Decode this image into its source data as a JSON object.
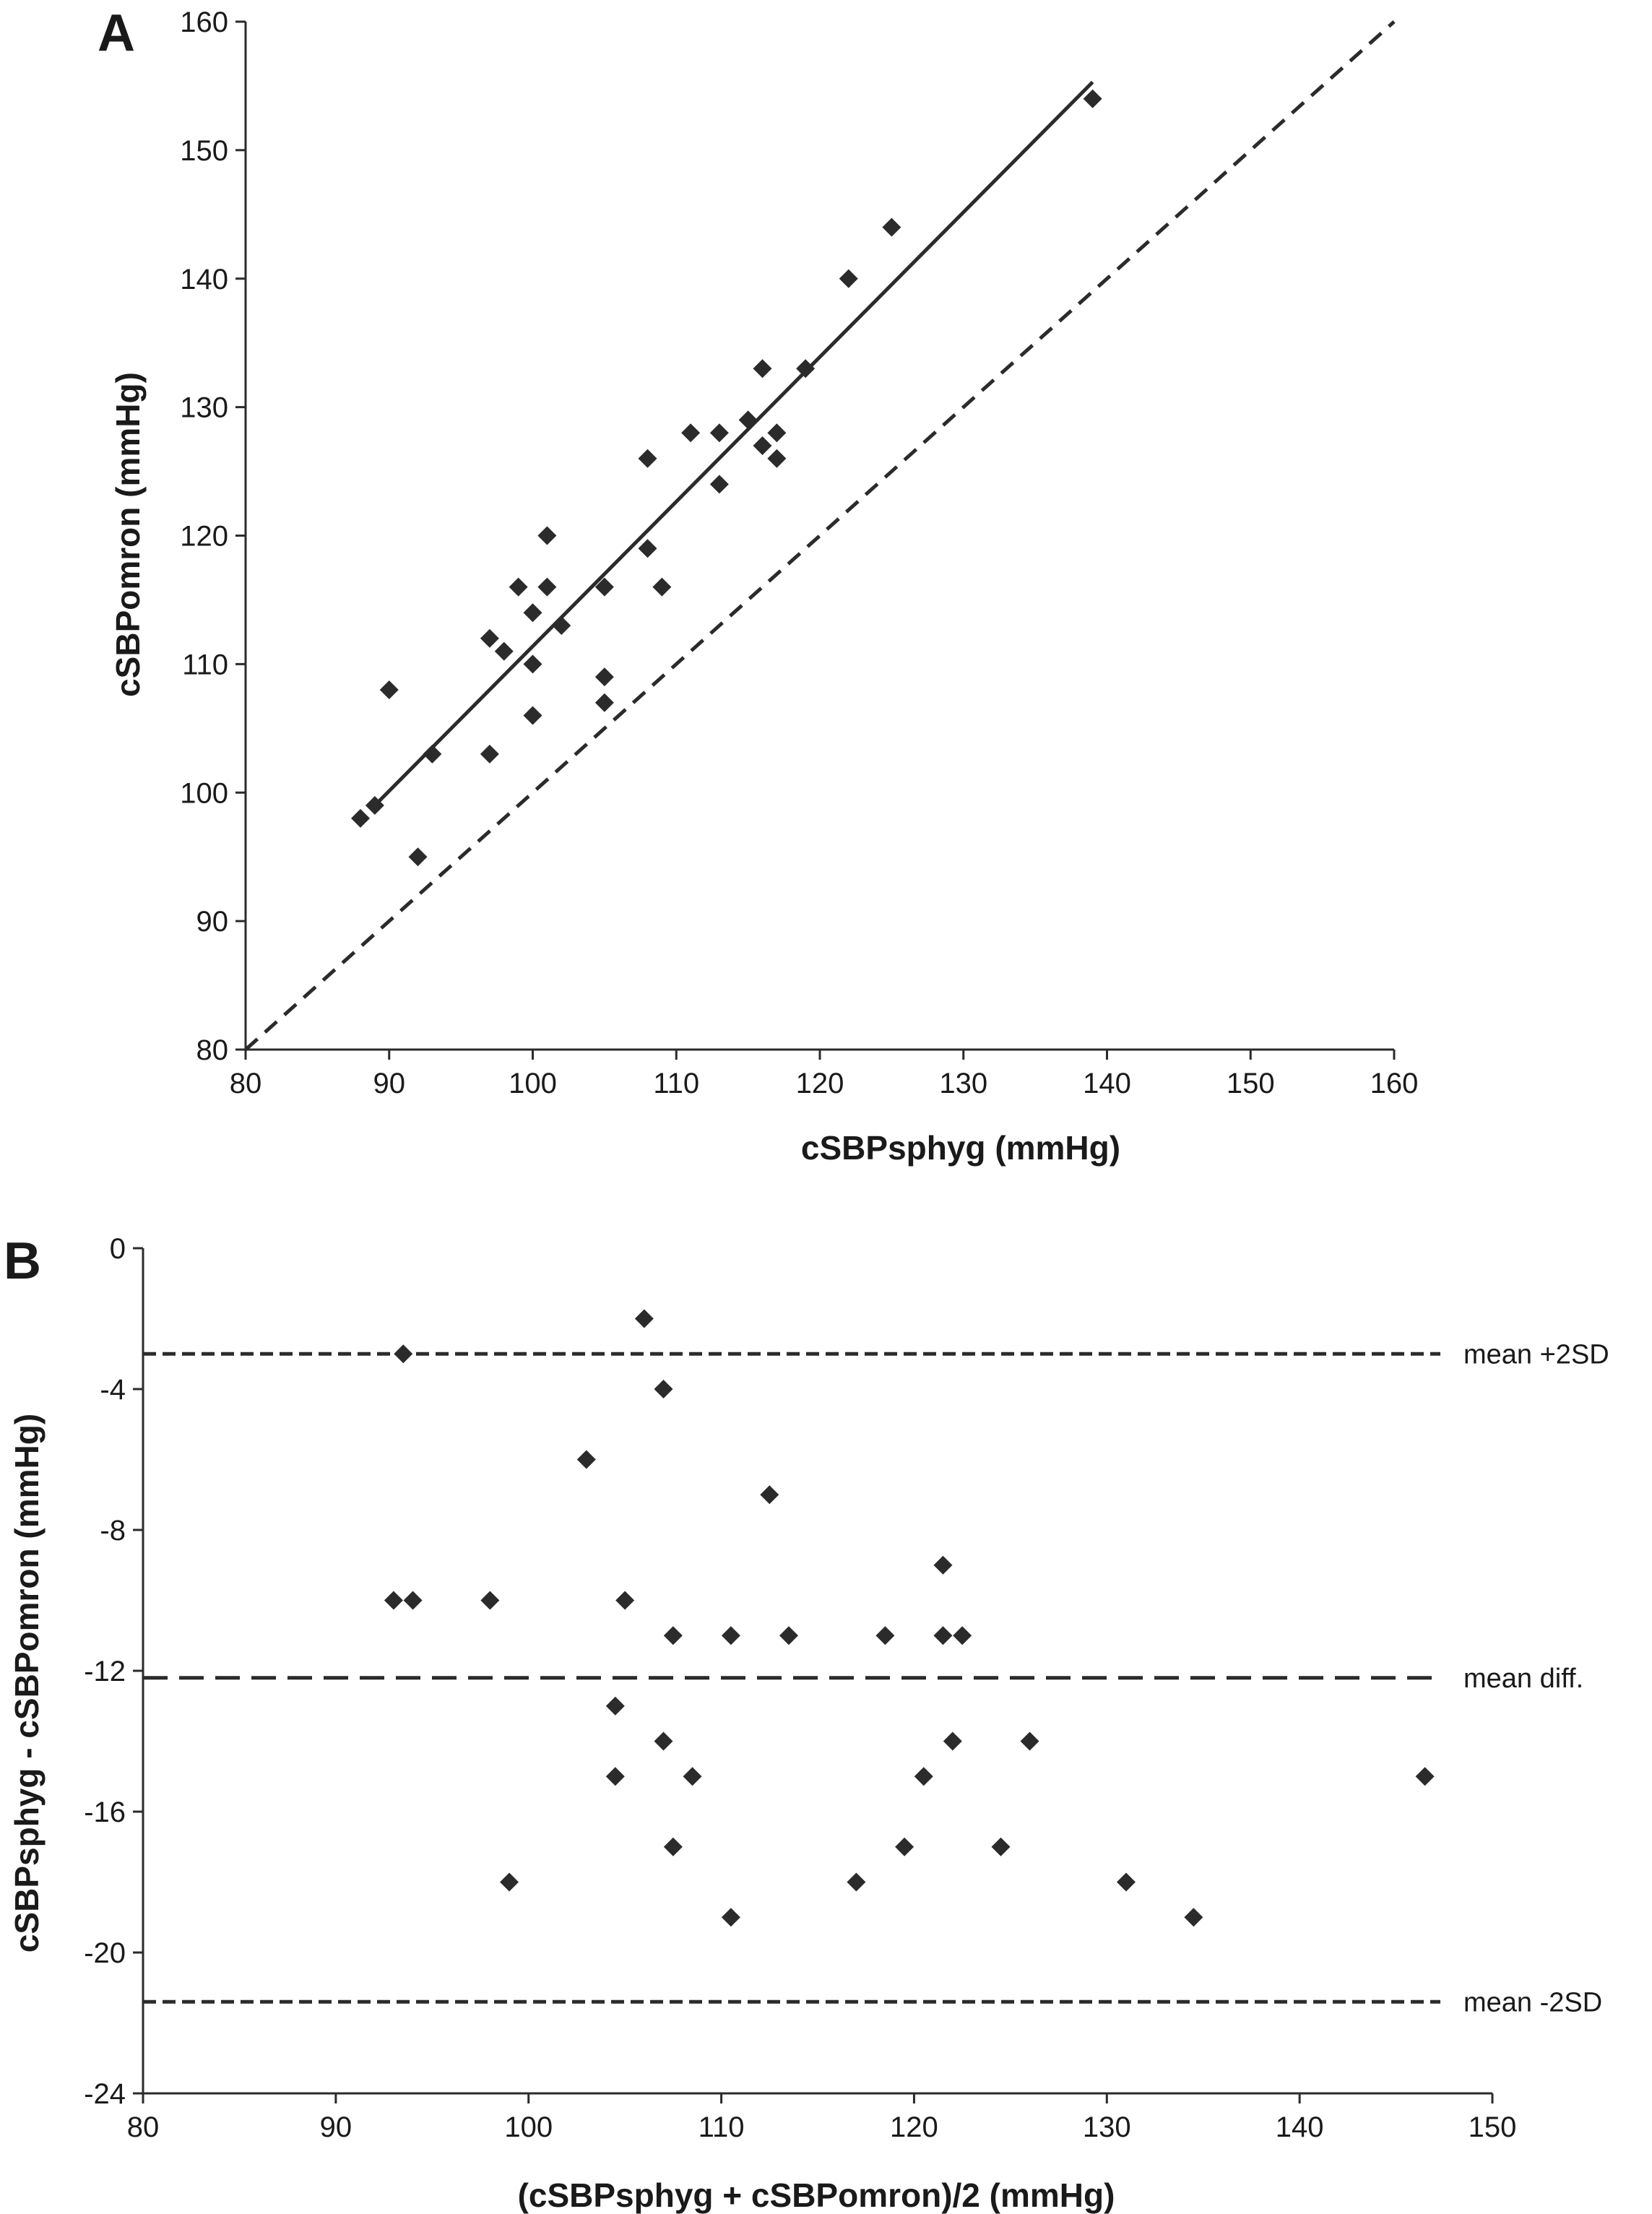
{
  "panels": {
    "a": {
      "letter": "A"
    },
    "b": {
      "letter": "B"
    }
  },
  "chart_data": [
    {
      "type": "scatter",
      "panel": "A",
      "xlabel": "cSBPsphyg (mmHg)",
      "ylabel": "cSBPomron (mmHg)",
      "xlim": [
        80,
        160
      ],
      "ylim": [
        80,
        160
      ],
      "xticks": [
        80,
        90,
        100,
        110,
        120,
        130,
        140,
        150,
        160
      ],
      "yticks": [
        80,
        90,
        100,
        110,
        120,
        130,
        140,
        150,
        160
      ],
      "grid": false,
      "colors": {
        "points": "#2b2b2b",
        "lines": "#2b2b2b"
      },
      "series": [
        {
          "points": [
            [
              88,
              98
            ],
            [
              89,
              99
            ],
            [
              90,
              108
            ],
            [
              92,
              95
            ],
            [
              93,
              103
            ],
            [
              97,
              103
            ],
            [
              97,
              112
            ],
            [
              98,
              111
            ],
            [
              99,
              116
            ],
            [
              100,
              110
            ],
            [
              100,
              106
            ],
            [
              100,
              114
            ],
            [
              101,
              116
            ],
            [
              101,
              120
            ],
            [
              102,
              113
            ],
            [
              105,
              116
            ],
            [
              105,
              109
            ],
            [
              105,
              107
            ],
            [
              108,
              126
            ],
            [
              108,
              119
            ],
            [
              109,
              116
            ],
            [
              111,
              128
            ],
            [
              113,
              128
            ],
            [
              113,
              124
            ],
            [
              115,
              129
            ],
            [
              116,
              133
            ],
            [
              116,
              127
            ],
            [
              117,
              128
            ],
            [
              117,
              126
            ],
            [
              119,
              133
            ],
            [
              122,
              140
            ],
            [
              125,
              144
            ],
            [
              139,
              154
            ]
          ]
        }
      ],
      "lines": [
        {
          "style": "solid",
          "from": [
            89,
            99
          ],
          "to": [
            139,
            155.3
          ]
        },
        {
          "style": "dashed",
          "from": [
            80,
            80
          ],
          "to": [
            160,
            160
          ]
        }
      ]
    },
    {
      "type": "scatter",
      "panel": "B",
      "xlabel": "(cSBPsphyg + cSBPomron)/2 (mmHg)",
      "ylabel": "cSBPsphyg - cSBPomron (mmHg)",
      "xlim": [
        80,
        150
      ],
      "ylim": [
        -24,
        0
      ],
      "xticks": [
        80,
        90,
        100,
        110,
        120,
        130,
        140,
        150
      ],
      "yticks": [
        0,
        -4,
        -8,
        -12,
        -16,
        -20,
        -24
      ],
      "grid": false,
      "colors": {
        "points": "#2b2b2b",
        "lines": "#2b2b2b"
      },
      "series": [
        {
          "points": [
            [
              93,
              -10
            ],
            [
              93.5,
              -3
            ],
            [
              94,
              -10
            ],
            [
              98,
              -10
            ],
            [
              99,
              -18
            ],
            [
              103,
              -6
            ],
            [
              104.5,
              -13
            ],
            [
              104.5,
              -15
            ],
            [
              105,
              -10
            ],
            [
              106,
              -2
            ],
            [
              107,
              -4
            ],
            [
              107,
              -14
            ],
            [
              107.5,
              -11
            ],
            [
              107.5,
              -17
            ],
            [
              108.5,
              -15
            ],
            [
              110.5,
              -11
            ],
            [
              110.5,
              -19
            ],
            [
              112.5,
              -7
            ],
            [
              113.5,
              -11
            ],
            [
              117,
              -18
            ],
            [
              118.5,
              -11
            ],
            [
              119.5,
              -17
            ],
            [
              120.5,
              -15
            ],
            [
              121.5,
              -9
            ],
            [
              121.5,
              -11
            ],
            [
              122,
              -14
            ],
            [
              122.5,
              -11
            ],
            [
              124.5,
              -17
            ],
            [
              126,
              -14
            ],
            [
              131,
              -18
            ],
            [
              134.5,
              -19
            ],
            [
              146.5,
              -15
            ]
          ]
        }
      ],
      "reference_lines": [
        {
          "label": "mean +2SD",
          "y": -3,
          "style": "dashed"
        },
        {
          "label": "mean diff.",
          "y": -12.2,
          "style": "long-dashed"
        },
        {
          "label": "mean -2SD",
          "y": -21.4,
          "style": "dashed"
        }
      ]
    }
  ]
}
